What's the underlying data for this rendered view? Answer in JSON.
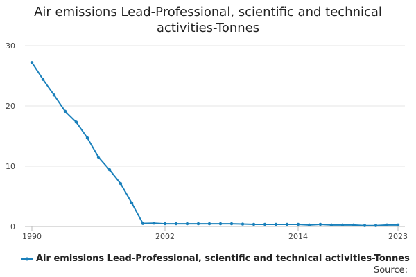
{
  "chart_data": {
    "type": "line",
    "title": "Air emissions Lead-Professional, scientific and technical activities-Tonnes",
    "x": [
      1990,
      1991,
      1992,
      1993,
      1994,
      1995,
      1996,
      1997,
      1998,
      1999,
      2000,
      2001,
      2002,
      2003,
      2004,
      2005,
      2006,
      2007,
      2008,
      2009,
      2010,
      2011,
      2012,
      2013,
      2014,
      2015,
      2016,
      2017,
      2018,
      2019,
      2020,
      2021,
      2022,
      2023
    ],
    "series": [
      {
        "name": "Air emissions Lead-Professional, scientific and technical activities-Tonnes",
        "color": "#1a80bb",
        "values": [
          27.2,
          24.4,
          21.8,
          19.1,
          17.3,
          14.7,
          11.5,
          9.4,
          7.1,
          3.9,
          0.5,
          0.55,
          0.45,
          0.45,
          0.45,
          0.45,
          0.45,
          0.45,
          0.45,
          0.4,
          0.35,
          0.35,
          0.35,
          0.35,
          0.35,
          0.25,
          0.35,
          0.25,
          0.25,
          0.25,
          0.15,
          0.15,
          0.25,
          0.25
        ]
      }
    ],
    "xlim": [
      1990,
      2023
    ],
    "xticks": [
      1990,
      2002,
      2014,
      2023
    ],
    "ylim": [
      0,
      30
    ],
    "yticks": [
      0,
      10,
      20,
      30
    ],
    "grid": true,
    "source": "Source:"
  }
}
